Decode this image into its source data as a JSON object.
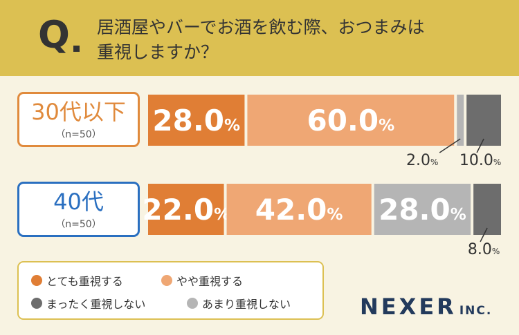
{
  "question": {
    "mark": "Q",
    "line1": "居酒屋やバーでお酒を飲む際、おつまみは",
    "line2": "重視しますか？"
  },
  "groups": [
    {
      "name": "30代以下",
      "n": "（n=50）",
      "label_color": "#e08a3c"
    },
    {
      "name": "40代",
      "n": "（n=50）",
      "label_color": "#2a6fc0"
    }
  ],
  "chart_data": {
    "type": "bar",
    "orientation": "horizontal",
    "stacked": true,
    "normalized": true,
    "unit": "%",
    "categories": [
      "30代以下",
      "40代"
    ],
    "series": [
      {
        "name": "とても重視する",
        "color": "#e07e35",
        "values": [
          28.0,
          22.0
        ]
      },
      {
        "name": "やや重視する",
        "color": "#efa774",
        "values": [
          60.0,
          42.0
        ]
      },
      {
        "name": "あまり重視しない",
        "color": "#b5b5b5",
        "values": [
          2.0,
          28.0
        ]
      },
      {
        "name": "まったく重視しない",
        "color": "#6d6d6d",
        "values": [
          10.0,
          8.0
        ]
      }
    ],
    "xlim": [
      0,
      100
    ],
    "value_labels": [
      [
        "28.0",
        "60.0",
        "2.0",
        "10.0"
      ],
      [
        "22.0",
        "42.0",
        "28.0",
        "8.0"
      ]
    ],
    "legend_order": [
      "とても重視する",
      "やや重視する",
      "まったく重視しない",
      "あまり重視しない"
    ],
    "legend_position": "bottom-left"
  },
  "logo": {
    "main": "NEXER",
    "sub": "INC."
  }
}
